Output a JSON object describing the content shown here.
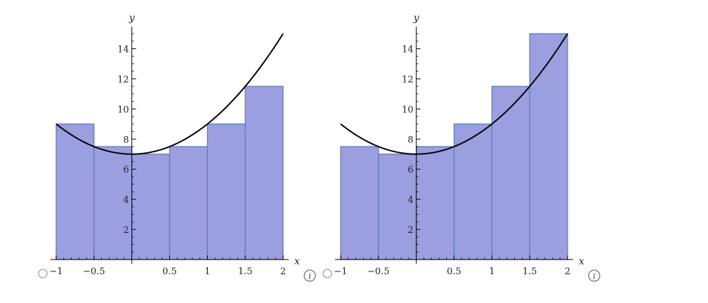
{
  "chart_data": [
    {
      "type": "bar",
      "variant": "left-endpoint Riemann sum",
      "function_label": "",
      "xlabel": "x",
      "ylabel": "y",
      "xlim": [
        -1,
        2
      ],
      "ylim": [
        0,
        15
      ],
      "x_ticks": [
        -1,
        -0.5,
        0.5,
        1,
        1.5,
        2
      ],
      "x_tick_labels": [
        "−1",
        "−0.5",
        "0.5",
        "1",
        "1.5",
        "2"
      ],
      "y_ticks": [
        2,
        4,
        6,
        8,
        10,
        12,
        14
      ],
      "y_tick_labels": [
        "2",
        "4",
        "6",
        "8",
        "10",
        "12",
        "14"
      ],
      "bars": [
        {
          "x0": -1,
          "x1": -0.5,
          "value": 9
        },
        {
          "x0": -0.5,
          "x1": 0,
          "value": 7.5
        },
        {
          "x0": 0,
          "x1": 0.5,
          "value": 7
        },
        {
          "x0": 0.5,
          "x1": 1,
          "value": 7.5
        },
        {
          "x0": 1,
          "x1": 1.5,
          "value": 9
        },
        {
          "x0": 1.5,
          "x1": 2,
          "value": 11.5
        }
      ],
      "curve": {
        "formula": "2x^2 + 7",
        "a": 2,
        "c": 7,
        "x_range": [
          -1,
          2
        ]
      }
    },
    {
      "type": "bar",
      "variant": "right-endpoint Riemann sum",
      "function_label": "",
      "xlabel": "x",
      "ylabel": "y",
      "xlim": [
        -1,
        2
      ],
      "ylim": [
        0,
        15
      ],
      "x_ticks": [
        -1,
        -0.5,
        0.5,
        1,
        1.5,
        2
      ],
      "x_tick_labels": [
        "−1",
        "−0.5",
        "0.5",
        "1",
        "1.5",
        "2"
      ],
      "y_ticks": [
        2,
        4,
        6,
        8,
        10,
        12,
        14
      ],
      "y_tick_labels": [
        "2",
        "4",
        "6",
        "8",
        "10",
        "12",
        "14"
      ],
      "bars": [
        {
          "x0": -1,
          "x1": -0.5,
          "value": 7.5
        },
        {
          "x0": -0.5,
          "x1": 0,
          "value": 7
        },
        {
          "x0": 0,
          "x1": 0.5,
          "value": 7.5
        },
        {
          "x0": 0.5,
          "x1": 1,
          "value": 9
        },
        {
          "x0": 1,
          "x1": 1.5,
          "value": 11.5
        },
        {
          "x0": 1.5,
          "x1": 2,
          "value": 15
        }
      ],
      "curve": {
        "formula": "2x^2 + 7",
        "a": 2,
        "c": 7,
        "x_range": [
          -1,
          2
        ]
      }
    }
  ],
  "colors": {
    "bar_fill": "#9b9fe0",
    "bar_stroke": "#5a7fc0",
    "curve": "#000000",
    "axis": "#000000",
    "text": "#222222"
  },
  "info_icon_label": "i",
  "icons": [
    "radio-icon",
    "info-icon"
  ]
}
